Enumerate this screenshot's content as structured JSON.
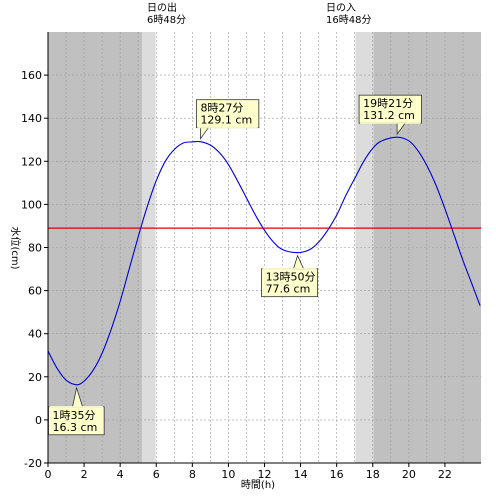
{
  "chart_data": {
    "type": "line",
    "title": "",
    "xlabel": "時間(h)",
    "ylabel": "水位(cm)",
    "xlim": [
      0,
      24
    ],
    "ylim": [
      -20,
      180
    ],
    "x_ticks": [
      0,
      2,
      4,
      6,
      8,
      10,
      12,
      14,
      16,
      18,
      20,
      22
    ],
    "y_ticks": [
      -20,
      0,
      20,
      40,
      60,
      80,
      100,
      120,
      140,
      160
    ],
    "reference_line": {
      "value": 89,
      "color": "#e00000"
    },
    "series": [
      {
        "color": "#0000dd",
        "x": [
          0,
          0.5,
          1.0,
          1.583,
          2.0,
          2.5,
          3.0,
          3.5,
          4.0,
          4.5,
          5.0,
          5.5,
          6.0,
          6.5,
          7.0,
          7.5,
          8.0,
          8.45,
          9.0,
          9.5,
          10.0,
          10.5,
          11.0,
          11.5,
          12.0,
          12.5,
          13.0,
          13.833,
          14.5,
          15.0,
          15.5,
          16.0,
          16.5,
          17.0,
          17.5,
          18.0,
          18.5,
          19.35,
          20.0,
          20.5,
          21.0,
          21.5,
          22.0,
          22.5,
          23.0,
          23.5,
          23.95
        ],
        "y": [
          32,
          24,
          18.5,
          16.3,
          18,
          23,
          31,
          42,
          55,
          70,
          85,
          99,
          111,
          120,
          125.5,
          128.5,
          129,
          129.1,
          127.5,
          124,
          118.5,
          111,
          103,
          95,
          88,
          82.5,
          79,
          77.6,
          79,
          82.5,
          88,
          95,
          104,
          112,
          120,
          126,
          129.5,
          131.2,
          129.5,
          125,
          118,
          109,
          98,
          86,
          74,
          63,
          53
        ]
      }
    ],
    "sun": {
      "sunrise_label": "日の出",
      "sunrise_time": "6時48分",
      "sunrise_hour": 6.8,
      "sunset_label": "日の入",
      "sunset_time": "16時48分",
      "sunset_hour": 16.8,
      "night_color": "#c0c0c0",
      "twilight_color": "#dcdcdc",
      "day_color": "#ffffff",
      "twilight_bands": [
        [
          5.2,
          5.95
        ],
        [
          17.05,
          18.05
        ]
      ],
      "light_bands": [
        [
          5.95,
          6.8
        ],
        [
          16.8,
          17.05
        ]
      ]
    },
    "annotations": [
      {
        "time": "1時35分",
        "value": "16.3 cm",
        "x": 1.583,
        "y": 16.3,
        "pointer": "up"
      },
      {
        "time": "8時27分",
        "value": "129.1 cm",
        "x": 8.45,
        "y": 129.1,
        "pointer": "down"
      },
      {
        "time": "13時50分",
        "value": "77.6 cm",
        "x": 13.833,
        "y": 77.6,
        "pointer": "up"
      },
      {
        "time": "19時21分",
        "value": "131.2 cm",
        "x": 19.35,
        "y": 131.2,
        "pointer": "down"
      }
    ],
    "grid": true,
    "legend": "none"
  }
}
